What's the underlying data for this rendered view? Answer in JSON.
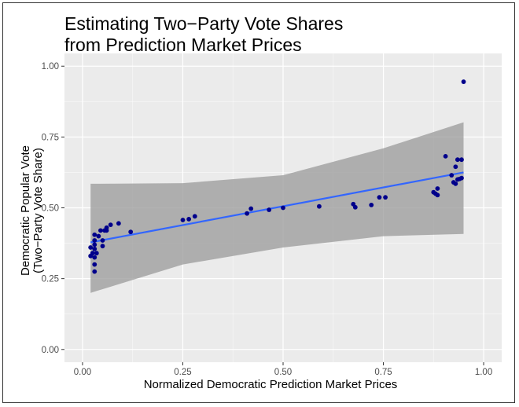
{
  "chart_data": {
    "type": "scatter",
    "title_lines": [
      "Estimating Two−Party Vote Shares",
      "from Prediction Market Prices"
    ],
    "xlabel": "Normalized Democratic Prediction Market Prices",
    "ylabel_lines": [
      "Democratic Popular Vote",
      "(Two−Party Vote Share)"
    ],
    "xlim": [
      -0.045,
      1.045
    ],
    "ylim": [
      -0.045,
      1.045
    ],
    "x_ticks": [
      0,
      0.25,
      0.5,
      0.75,
      1
    ],
    "x_tick_labels": [
      "0.00",
      "0.25",
      "0.50",
      "0.75",
      "1.00"
    ],
    "y_ticks": [
      0,
      0.25,
      0.5,
      0.75,
      1
    ],
    "y_tick_labels": [
      "0.00",
      "0.25",
      "0.50",
      "0.75",
      "1.00"
    ],
    "grid": true,
    "legend": "none",
    "colors": {
      "panel": "#ebebeb",
      "grid_major": "#ffffff",
      "points": "#00008b",
      "fit_line": "#3366ff",
      "confidence_band": "#999999"
    },
    "points": [
      {
        "x": 0.02,
        "y": 0.36
      },
      {
        "x": 0.02,
        "y": 0.33
      },
      {
        "x": 0.025,
        "y": 0.34
      },
      {
        "x": 0.03,
        "y": 0.405
      },
      {
        "x": 0.03,
        "y": 0.385
      },
      {
        "x": 0.03,
        "y": 0.37
      },
      {
        "x": 0.03,
        "y": 0.355
      },
      {
        "x": 0.03,
        "y": 0.325
      },
      {
        "x": 0.03,
        "y": 0.3
      },
      {
        "x": 0.03,
        "y": 0.275
      },
      {
        "x": 0.035,
        "y": 0.34
      },
      {
        "x": 0.04,
        "y": 0.4
      },
      {
        "x": 0.045,
        "y": 0.42
      },
      {
        "x": 0.05,
        "y": 0.385
      },
      {
        "x": 0.05,
        "y": 0.365
      },
      {
        "x": 0.055,
        "y": 0.42
      },
      {
        "x": 0.06,
        "y": 0.42
      },
      {
        "x": 0.06,
        "y": 0.43
      },
      {
        "x": 0.07,
        "y": 0.44
      },
      {
        "x": 0.09,
        "y": 0.445
      },
      {
        "x": 0.12,
        "y": 0.415
      },
      {
        "x": 0.25,
        "y": 0.457
      },
      {
        "x": 0.265,
        "y": 0.46
      },
      {
        "x": 0.28,
        "y": 0.47
      },
      {
        "x": 0.41,
        "y": 0.48
      },
      {
        "x": 0.42,
        "y": 0.497
      },
      {
        "x": 0.465,
        "y": 0.493
      },
      {
        "x": 0.5,
        "y": 0.5
      },
      {
        "x": 0.59,
        "y": 0.505
      },
      {
        "x": 0.675,
        "y": 0.513
      },
      {
        "x": 0.68,
        "y": 0.502
      },
      {
        "x": 0.72,
        "y": 0.51
      },
      {
        "x": 0.74,
        "y": 0.537
      },
      {
        "x": 0.755,
        "y": 0.537
      },
      {
        "x": 0.875,
        "y": 0.555
      },
      {
        "x": 0.88,
        "y": 0.55
      },
      {
        "x": 0.885,
        "y": 0.568
      },
      {
        "x": 0.885,
        "y": 0.545
      },
      {
        "x": 0.905,
        "y": 0.682
      },
      {
        "x": 0.92,
        "y": 0.615
      },
      {
        "x": 0.925,
        "y": 0.59
      },
      {
        "x": 0.93,
        "y": 0.585
      },
      {
        "x": 0.93,
        "y": 0.645
      },
      {
        "x": 0.935,
        "y": 0.6
      },
      {
        "x": 0.935,
        "y": 0.67
      },
      {
        "x": 0.94,
        "y": 0.602
      },
      {
        "x": 0.945,
        "y": 0.67
      },
      {
        "x": 0.945,
        "y": 0.605
      },
      {
        "x": 0.95,
        "y": 0.945
      }
    ],
    "fit_line": {
      "x": [
        0.02,
        0.95
      ],
      "y": [
        0.378,
        0.625
      ]
    },
    "confidence_band": {
      "x": [
        0.02,
        0.25,
        0.5,
        0.75,
        0.95
      ],
      "upper": [
        0.585,
        0.587,
        0.615,
        0.71,
        0.802
      ],
      "lower": [
        0.2,
        0.3,
        0.36,
        0.4,
        0.408
      ]
    }
  }
}
